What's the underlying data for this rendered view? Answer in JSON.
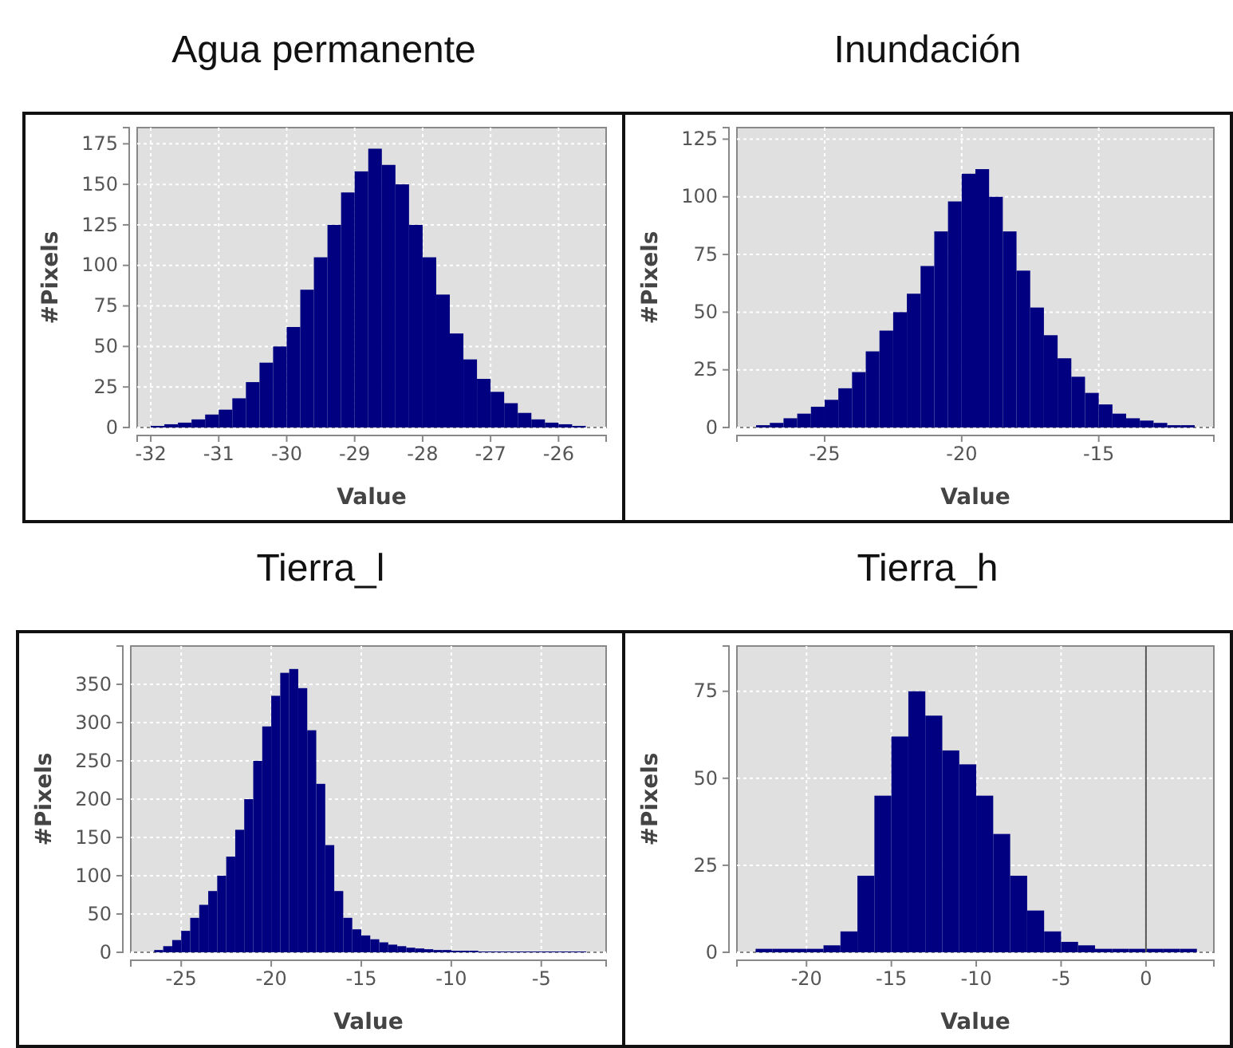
{
  "chart_data": [
    {
      "type": "histogram",
      "title": "Agua permanente",
      "xlabel": "Value",
      "ylabel": "#Pixels",
      "color": "#000080",
      "grid": true,
      "xlim": [
        -32.2,
        -25.3
      ],
      "xticks": [
        -32,
        -31,
        -30,
        -29,
        -28,
        -27,
        -26
      ],
      "ylim": [
        0,
        185
      ],
      "yticks": [
        0,
        25,
        50,
        75,
        100,
        125,
        150,
        175
      ],
      "bins": [
        -32.0,
        -31.8,
        -31.6,
        -31.4,
        -31.2,
        -31.0,
        -30.8,
        -30.6,
        -30.4,
        -30.2,
        -30.0,
        -29.8,
        -29.6,
        -29.4,
        -29.2,
        -29.0,
        -28.8,
        -28.6,
        -28.4,
        -28.2,
        -28.0,
        -27.8,
        -27.6,
        -27.4,
        -27.2,
        -27.0,
        -26.8,
        -26.6,
        -26.4,
        -26.2,
        -26.0,
        -25.8,
        -25.6
      ],
      "values": [
        1,
        2,
        3,
        5,
        8,
        11,
        18,
        28,
        40,
        50,
        62,
        85,
        105,
        125,
        145,
        158,
        172,
        162,
        150,
        125,
        105,
        82,
        58,
        42,
        30,
        22,
        15,
        9,
        5,
        3,
        2,
        1
      ]
    },
    {
      "type": "histogram",
      "title": "Inundación",
      "xlabel": "Value",
      "ylabel": "#Pixels",
      "color": "#000080",
      "grid": true,
      "xlim": [
        -28.2,
        -10.8
      ],
      "xticks": [
        -25,
        -20,
        -15
      ],
      "ylim": [
        0,
        130
      ],
      "yticks": [
        0,
        25,
        50,
        75,
        100,
        125
      ],
      "bins": [
        -27.5,
        -27,
        -26.5,
        -26,
        -25.5,
        -25,
        -24.5,
        -24,
        -23.5,
        -23,
        -22.5,
        -22,
        -21.5,
        -21,
        -20.5,
        -20,
        -19.5,
        -19,
        -18.5,
        -18,
        -17.5,
        -17,
        -16.5,
        -16,
        -15.5,
        -15,
        -14.5,
        -14,
        -13.5,
        -13,
        -12.5,
        -12,
        -11.5
      ],
      "values": [
        1,
        2,
        4,
        6,
        9,
        12,
        17,
        24,
        33,
        42,
        50,
        58,
        70,
        85,
        98,
        110,
        112,
        100,
        85,
        68,
        52,
        40,
        30,
        22,
        15,
        10,
        6,
        4,
        3,
        2,
        1,
        1
      ]
    },
    {
      "type": "histogram",
      "title": "Tierra_l",
      "xlabel": "Value",
      "ylabel": "#Pixels",
      "color": "#000080",
      "grid": true,
      "xlim": [
        -27.8,
        -1.4
      ],
      "xticks": [
        -25,
        -20,
        -15,
        -10,
        -5
      ],
      "ylim": [
        0,
        400
      ],
      "yticks": [
        0,
        50,
        100,
        150,
        200,
        250,
        300,
        350
      ],
      "bins": [
        -26.5,
        -26,
        -25.5,
        -25,
        -24.5,
        -24,
        -23.5,
        -23,
        -22.5,
        -22,
        -21.5,
        -21,
        -20.5,
        -20,
        -19.5,
        -19,
        -18.5,
        -18,
        -17.5,
        -17,
        -16.5,
        -16,
        -15.5,
        -15,
        -14.5,
        -14,
        -13.5,
        -13,
        -12.5,
        -12,
        -11.5,
        -11,
        -10.5,
        -10,
        -9.5,
        -9,
        -8.5,
        -8,
        -7.5,
        -7,
        -6.5,
        -6,
        -5.5,
        -5,
        -4.5,
        -4,
        -3.5,
        -3,
        -2.5
      ],
      "values": [
        3,
        8,
        16,
        28,
        45,
        62,
        80,
        100,
        125,
        160,
        200,
        250,
        295,
        335,
        365,
        370,
        345,
        290,
        220,
        140,
        80,
        45,
        30,
        22,
        17,
        13,
        10,
        8,
        6,
        5,
        4,
        3,
        3,
        2,
        2,
        2,
        1,
        1,
        1,
        1,
        1,
        1,
        1,
        1,
        1,
        1,
        1,
        1
      ]
    },
    {
      "type": "histogram",
      "title": "Tierra_h",
      "xlabel": "Value",
      "ylabel": "#Pixels",
      "color": "#000080",
      "grid": true,
      "xlim": [
        -24.1,
        4
      ],
      "xticks": [
        -20,
        -15,
        -10,
        -5,
        0
      ],
      "ylim": [
        0,
        88
      ],
      "yticks": [
        0,
        25,
        50,
        75
      ],
      "ref_lines": [
        {
          "axis": "x",
          "value": 0,
          "color": "#555555"
        }
      ],
      "bins": [
        -23,
        -22,
        -21,
        -20,
        -19,
        -18,
        -17,
        -16,
        -15,
        -14,
        -13,
        -12,
        -11,
        -10,
        -9,
        -8,
        -7,
        -6,
        -5,
        -4,
        -3,
        -2,
        -1,
        0,
        1,
        2,
        3
      ],
      "values": [
        1,
        1,
        1,
        1,
        2,
        6,
        22,
        45,
        62,
        75,
        68,
        58,
        54,
        45,
        34,
        22,
        12,
        6,
        3,
        2,
        1,
        1,
        1,
        1,
        1,
        1
      ]
    }
  ]
}
